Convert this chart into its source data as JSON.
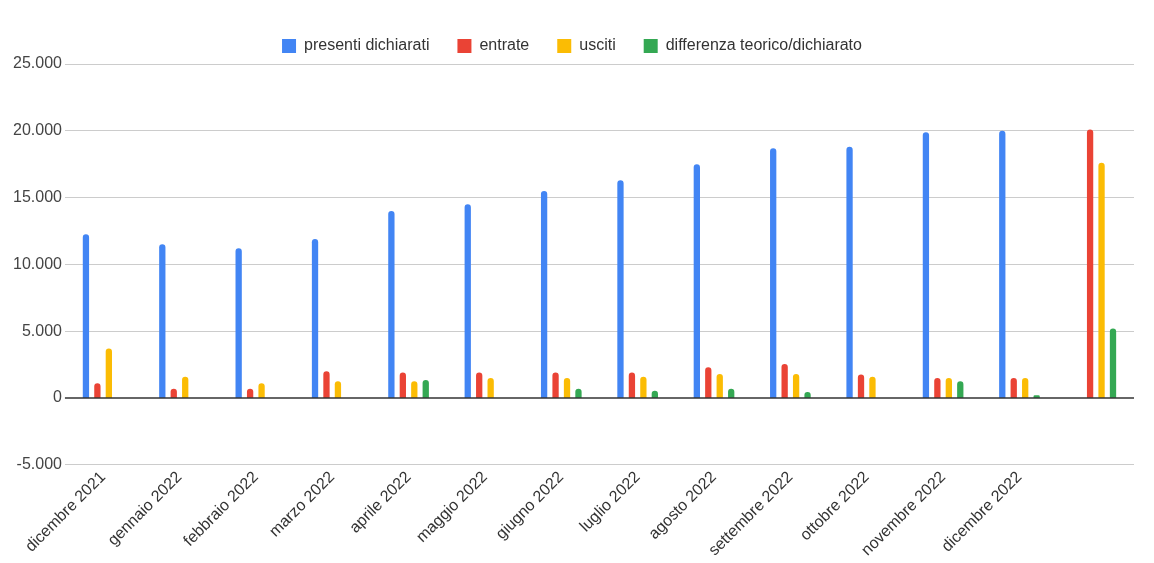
{
  "chart_data": {
    "type": "bar",
    "categories": [
      "dicembre 2021",
      "gennaio 2022",
      "febbraio 2022",
      "marzo 2022",
      "aprile 2022",
      "maggio 2022",
      "giugno 2022",
      "luglio 2022",
      "agosto 2022",
      "settembre 2022",
      "ottobre 2022",
      "novembre 2022",
      "dicembre 2022",
      null
    ],
    "series": [
      {
        "name": "presenti dichiarati",
        "color": "#4285f4",
        "values": [
          12250,
          11500,
          11200,
          11900,
          14000,
          14500,
          15500,
          16300,
          17500,
          18700,
          18800,
          19900,
          20000,
          null
        ]
      },
      {
        "name": "entrate",
        "color": "#ea4335",
        "values": [
          1100,
          700,
          700,
          2000,
          1900,
          1900,
          1900,
          1900,
          2300,
          2550,
          1750,
          1500,
          1500,
          20100
        ]
      },
      {
        "name": "usciti",
        "color": "#fbbc04",
        "values": [
          3700,
          1600,
          1100,
          1250,
          1250,
          1500,
          1500,
          1600,
          1800,
          1800,
          1600,
          1500,
          1500,
          17600
        ]
      },
      {
        "name": "differenza teorico/dichiarato",
        "color": "#34a853",
        "values": [
          null,
          null,
          null,
          null,
          1350,
          null,
          700,
          550,
          700,
          450,
          null,
          1250,
          200,
          5200
        ]
      }
    ],
    "ylim": [
      -5000,
      25000
    ],
    "yticks": [
      {
        "value": -5000,
        "label": "-5.000"
      },
      {
        "value": 0,
        "label": "0"
      },
      {
        "value": 5000,
        "label": "5.000"
      },
      {
        "value": 10000,
        "label": "10.000"
      },
      {
        "value": 15000,
        "label": "15.000"
      },
      {
        "value": 20000,
        "label": "20.000"
      },
      {
        "value": 25000,
        "label": "25.000"
      }
    ],
    "grid": "y",
    "legend": "top"
  }
}
